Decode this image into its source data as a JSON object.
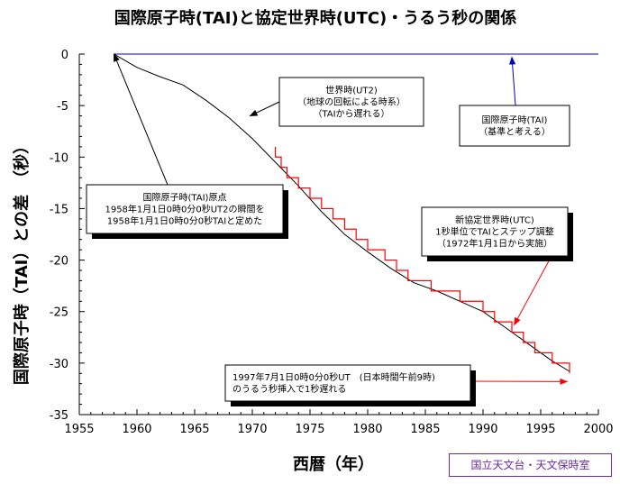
{
  "chart_data": {
    "type": "line",
    "title": "国際原子時(TAI)と協定世界時(UTC)・うるう秒の関係",
    "xlabel": "西暦（年）",
    "ylabel": "国際原子時（TAI）との差　（秒）",
    "xlim": [
      1955,
      2000
    ],
    "ylim": [
      -35,
      0
    ],
    "x_ticks": [
      1955,
      1960,
      1965,
      1970,
      1975,
      1980,
      1985,
      1990,
      1995,
      2000
    ],
    "y_ticks": [
      0,
      -5,
      -10,
      -15,
      -20,
      -25,
      -30,
      -35
    ],
    "grid": false,
    "series": [
      {
        "name": "国際原子時(TAI)",
        "color": "#0000cc",
        "x": [
          1958.0,
          2000.0
        ],
        "y": [
          0,
          0
        ]
      },
      {
        "name": "世界時(UT2)",
        "color": "#000000",
        "x": [
          1958.0,
          1960.0,
          1962.0,
          1964.0,
          1966.0,
          1968.0,
          1970.0,
          1972.0,
          1974.0,
          1976.0,
          1978.0,
          1980.0,
          1982.0,
          1984.0,
          1986.0,
          1988.0,
          1990.0,
          1992.0,
          1994.0,
          1996.0,
          1997.5
        ],
        "y": [
          0,
          -1.3,
          -2.2,
          -3.0,
          -4.5,
          -6.2,
          -8.2,
          -10.5,
          -12.8,
          -15.3,
          -17.5,
          -19.2,
          -20.8,
          -22.2,
          -23.0,
          -24.0,
          -25.0,
          -26.6,
          -28.2,
          -29.8,
          -30.8
        ]
      },
      {
        "name": "新協定世界時(UTC)",
        "color": "#ff0000",
        "step": true,
        "x": [
          1972.0,
          1972.5,
          1973.0,
          1974.0,
          1975.0,
          1976.0,
          1977.0,
          1978.0,
          1979.0,
          1980.0,
          1981.5,
          1982.5,
          1983.5,
          1985.5,
          1988.0,
          1990.0,
          1991.0,
          1992.5,
          1993.5,
          1994.5,
          1996.0,
          1997.5
        ],
        "y": [
          -10,
          -11,
          -12,
          -13,
          -14,
          -15,
          -16,
          -17,
          -18,
          -19,
          -20,
          -21,
          -22,
          -23,
          -24,
          -25,
          -26,
          -27,
          -28,
          -29,
          -30,
          -31
        ]
      }
    ],
    "annotations": [
      {
        "id": "tai-origin",
        "lines": [
          "国際原子時(TAI)原点",
          "1958年1月1日0時0分0秒UT2の瞬間を",
          "1958年1月1日0時0分0秒TAIと定めた"
        ],
        "arrow_to": [
          1958.0,
          0
        ],
        "arrow_color": "#000000"
      },
      {
        "id": "ut2",
        "lines": [
          "世界時(UT2)",
          "（地球の回転による時系）",
          "（TAIから遅れる）"
        ],
        "arrow_to": [
          1969.8,
          -6.0
        ],
        "arrow_color": "#000000"
      },
      {
        "id": "tai",
        "lines": [
          "国際原子時(TAI)",
          "（基準と考える）"
        ],
        "arrow_to": [
          1992.5,
          -0.3
        ],
        "arrow_color": "#0000cc"
      },
      {
        "id": "utc",
        "lines": [
          "新協定世界時(UTC)",
          "1秒単位でTAIとステップ調整",
          "（1972年1月1日から実施）"
        ],
        "arrow_to": [
          1992.7,
          -26.3
        ],
        "arrow_color": "#ff0000"
      },
      {
        "id": "leap-1997",
        "lines": [
          "1997年7月1日0時0分0秒UT　(日本時間午前9時)",
          "のうるう秒挿入で1秒遅れる"
        ],
        "arrow_to": [
          1997.3,
          -31.8
        ],
        "arrow_color": "#ff0000"
      }
    ]
  },
  "credit": "国立天文台・天文保時室"
}
